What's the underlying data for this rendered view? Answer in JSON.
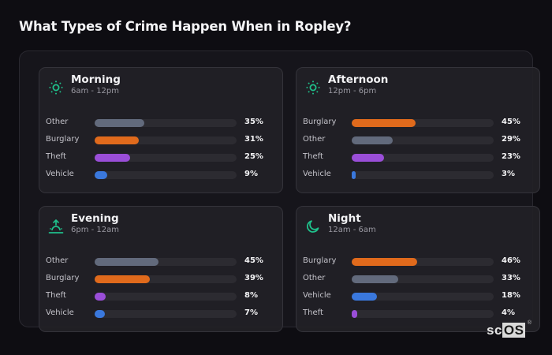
{
  "page": {
    "title": "What Types of Crime Happen When in Ropley?",
    "logo": {
      "prefix": "sc",
      "highlight": "OS",
      "mark": "®"
    }
  },
  "colors": {
    "Other": "#626a7c",
    "Burglary": "#e06a1c",
    "Theft": "#9a4ed8",
    "Vehicle": "#3a78dd",
    "icon_accent": "#1fbf8a"
  },
  "cards": [
    {
      "title": "Morning",
      "subtitle": "6am - 12pm",
      "icon": "sun-icon",
      "rows": [
        {
          "label": "Other",
          "value": 35,
          "display": "35%"
        },
        {
          "label": "Burglary",
          "value": 31,
          "display": "31%"
        },
        {
          "label": "Theft",
          "value": 25,
          "display": "25%"
        },
        {
          "label": "Vehicle",
          "value": 9,
          "display": "9%"
        }
      ]
    },
    {
      "title": "Afternoon",
      "subtitle": "12pm - 6pm",
      "icon": "sun-icon",
      "rows": [
        {
          "label": "Burglary",
          "value": 45,
          "display": "45%"
        },
        {
          "label": "Other",
          "value": 29,
          "display": "29%"
        },
        {
          "label": "Theft",
          "value": 23,
          "display": "23%"
        },
        {
          "label": "Vehicle",
          "value": 3,
          "display": "3%"
        }
      ]
    },
    {
      "title": "Evening",
      "subtitle": "6pm - 12am",
      "icon": "sunset-icon",
      "rows": [
        {
          "label": "Other",
          "value": 45,
          "display": "45%"
        },
        {
          "label": "Burglary",
          "value": 39,
          "display": "39%"
        },
        {
          "label": "Theft",
          "value": 8,
          "display": "8%"
        },
        {
          "label": "Vehicle",
          "value": 7,
          "display": "7%"
        }
      ]
    },
    {
      "title": "Night",
      "subtitle": "12am - 6am",
      "icon": "moon-icon",
      "rows": [
        {
          "label": "Burglary",
          "value": 46,
          "display": "46%"
        },
        {
          "label": "Other",
          "value": 33,
          "display": "33%"
        },
        {
          "label": "Vehicle",
          "value": 18,
          "display": "18%"
        },
        {
          "label": "Theft",
          "value": 4,
          "display": "4%"
        }
      ]
    }
  ],
  "chart_data": [
    {
      "type": "bar",
      "orientation": "horizontal",
      "title": "Morning",
      "subtitle": "6am - 12pm",
      "categories": [
        "Other",
        "Burglary",
        "Theft",
        "Vehicle"
      ],
      "values": [
        35,
        31,
        25,
        9
      ],
      "unit": "%",
      "xlim": [
        0,
        100
      ],
      "grid": false
    },
    {
      "type": "bar",
      "orientation": "horizontal",
      "title": "Afternoon",
      "subtitle": "12pm - 6pm",
      "categories": [
        "Burglary",
        "Other",
        "Theft",
        "Vehicle"
      ],
      "values": [
        45,
        29,
        23,
        3
      ],
      "unit": "%",
      "xlim": [
        0,
        100
      ],
      "grid": false
    },
    {
      "type": "bar",
      "orientation": "horizontal",
      "title": "Evening",
      "subtitle": "6pm - 12am",
      "categories": [
        "Other",
        "Burglary",
        "Theft",
        "Vehicle"
      ],
      "values": [
        45,
        39,
        8,
        7
      ],
      "unit": "%",
      "xlim": [
        0,
        100
      ],
      "grid": false
    },
    {
      "type": "bar",
      "orientation": "horizontal",
      "title": "Night",
      "subtitle": "12am - 6am",
      "categories": [
        "Burglary",
        "Other",
        "Vehicle",
        "Theft"
      ],
      "values": [
        46,
        33,
        18,
        4
      ],
      "unit": "%",
      "xlim": [
        0,
        100
      ],
      "grid": false
    }
  ]
}
